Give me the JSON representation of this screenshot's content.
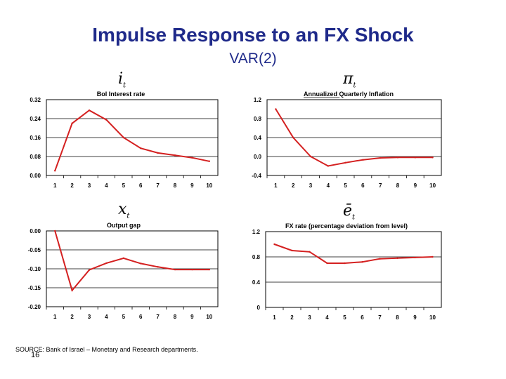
{
  "title": "Impulse Response to an FX Shock",
  "subtitle": "VAR(2)",
  "symbols": {
    "i": {
      "base": "i",
      "sub": "t"
    },
    "pi": {
      "base": "π",
      "sub": "t"
    },
    "x": {
      "base": "x",
      "sub": "t"
    },
    "e": {
      "base": "ē",
      "sub": "t"
    }
  },
  "source_text": "SOURCE: Bank of Israel – Monetary and Research departments.",
  "page_number": "16",
  "chart_data": [
    {
      "type": "line",
      "title": "BoI Interest rate",
      "x": [
        1,
        2,
        3,
        4,
        5,
        6,
        7,
        8,
        9,
        10
      ],
      "y": [
        0.02,
        0.22,
        0.275,
        0.235,
        0.16,
        0.115,
        0.095,
        0.085,
        0.075,
        0.06
      ],
      "ylim": [
        0,
        0.32
      ],
      "yticks": [
        "0.32",
        "0.24",
        "0.16",
        "0.08",
        "0.00"
      ],
      "ytick_values": [
        0.32,
        0.24,
        0.16,
        0.08,
        0.0
      ],
      "xticks": [
        "1",
        "2",
        "3",
        "4",
        "5",
        "6",
        "7",
        "8",
        "9",
        "10"
      ],
      "grid": true,
      "color": "#d42020"
    },
    {
      "type": "line",
      "title": "Annualized Quarterly Inflation",
      "x": [
        1,
        2,
        3,
        4,
        5,
        6,
        7,
        8,
        9,
        10
      ],
      "y": [
        1.0,
        0.4,
        0.0,
        -0.2,
        -0.13,
        -0.07,
        -0.03,
        -0.02,
        -0.02,
        -0.02
      ],
      "ylim": [
        -0.4,
        1.2
      ],
      "yticks": [
        "1.2",
        "0.8",
        "0.4",
        "0.0",
        "-0.4"
      ],
      "ytick_values": [
        1.2,
        0.8,
        0.4,
        0.0,
        -0.4
      ],
      "xticks": [
        "1",
        "2",
        "3",
        "4",
        "5",
        "6",
        "7",
        "8",
        "9",
        "10"
      ],
      "grid": true,
      "color": "#d42020"
    },
    {
      "type": "line",
      "title": "Output gap",
      "x": [
        1,
        2,
        3,
        4,
        5,
        6,
        7,
        8,
        9,
        10
      ],
      "y": [
        0.0,
        -0.157,
        -0.103,
        -0.085,
        -0.072,
        -0.086,
        -0.095,
        -0.102,
        -0.102,
        -0.102
      ],
      "ylim": [
        -0.2,
        0.0
      ],
      "yticks": [
        "0.00",
        "-0.05",
        "-0.10",
        "-0.15",
        "-0.20"
      ],
      "ytick_values": [
        0.0,
        -0.05,
        -0.1,
        -0.15,
        -0.2
      ],
      "xticks": [
        "1",
        "2",
        "3",
        "4",
        "5",
        "6",
        "7",
        "8",
        "9",
        "10"
      ],
      "grid": true,
      "color": "#d42020"
    },
    {
      "type": "line",
      "title": "FX rate (percentage deviation from level)",
      "x": [
        1,
        2,
        3,
        4,
        5,
        6,
        7,
        8,
        9,
        10
      ],
      "y": [
        1.0,
        0.9,
        0.88,
        0.7,
        0.7,
        0.72,
        0.77,
        0.78,
        0.79,
        0.8
      ],
      "ylim": [
        0,
        1.2
      ],
      "yticks": [
        "1.2",
        "0.8",
        "0.4",
        "0"
      ],
      "ytick_values": [
        1.2,
        0.8,
        0.4,
        0
      ],
      "xticks": [
        "1",
        "2",
        "3",
        "4",
        "5",
        "6",
        "7",
        "8",
        "9",
        "10"
      ],
      "grid": true,
      "color": "#d42020"
    }
  ]
}
